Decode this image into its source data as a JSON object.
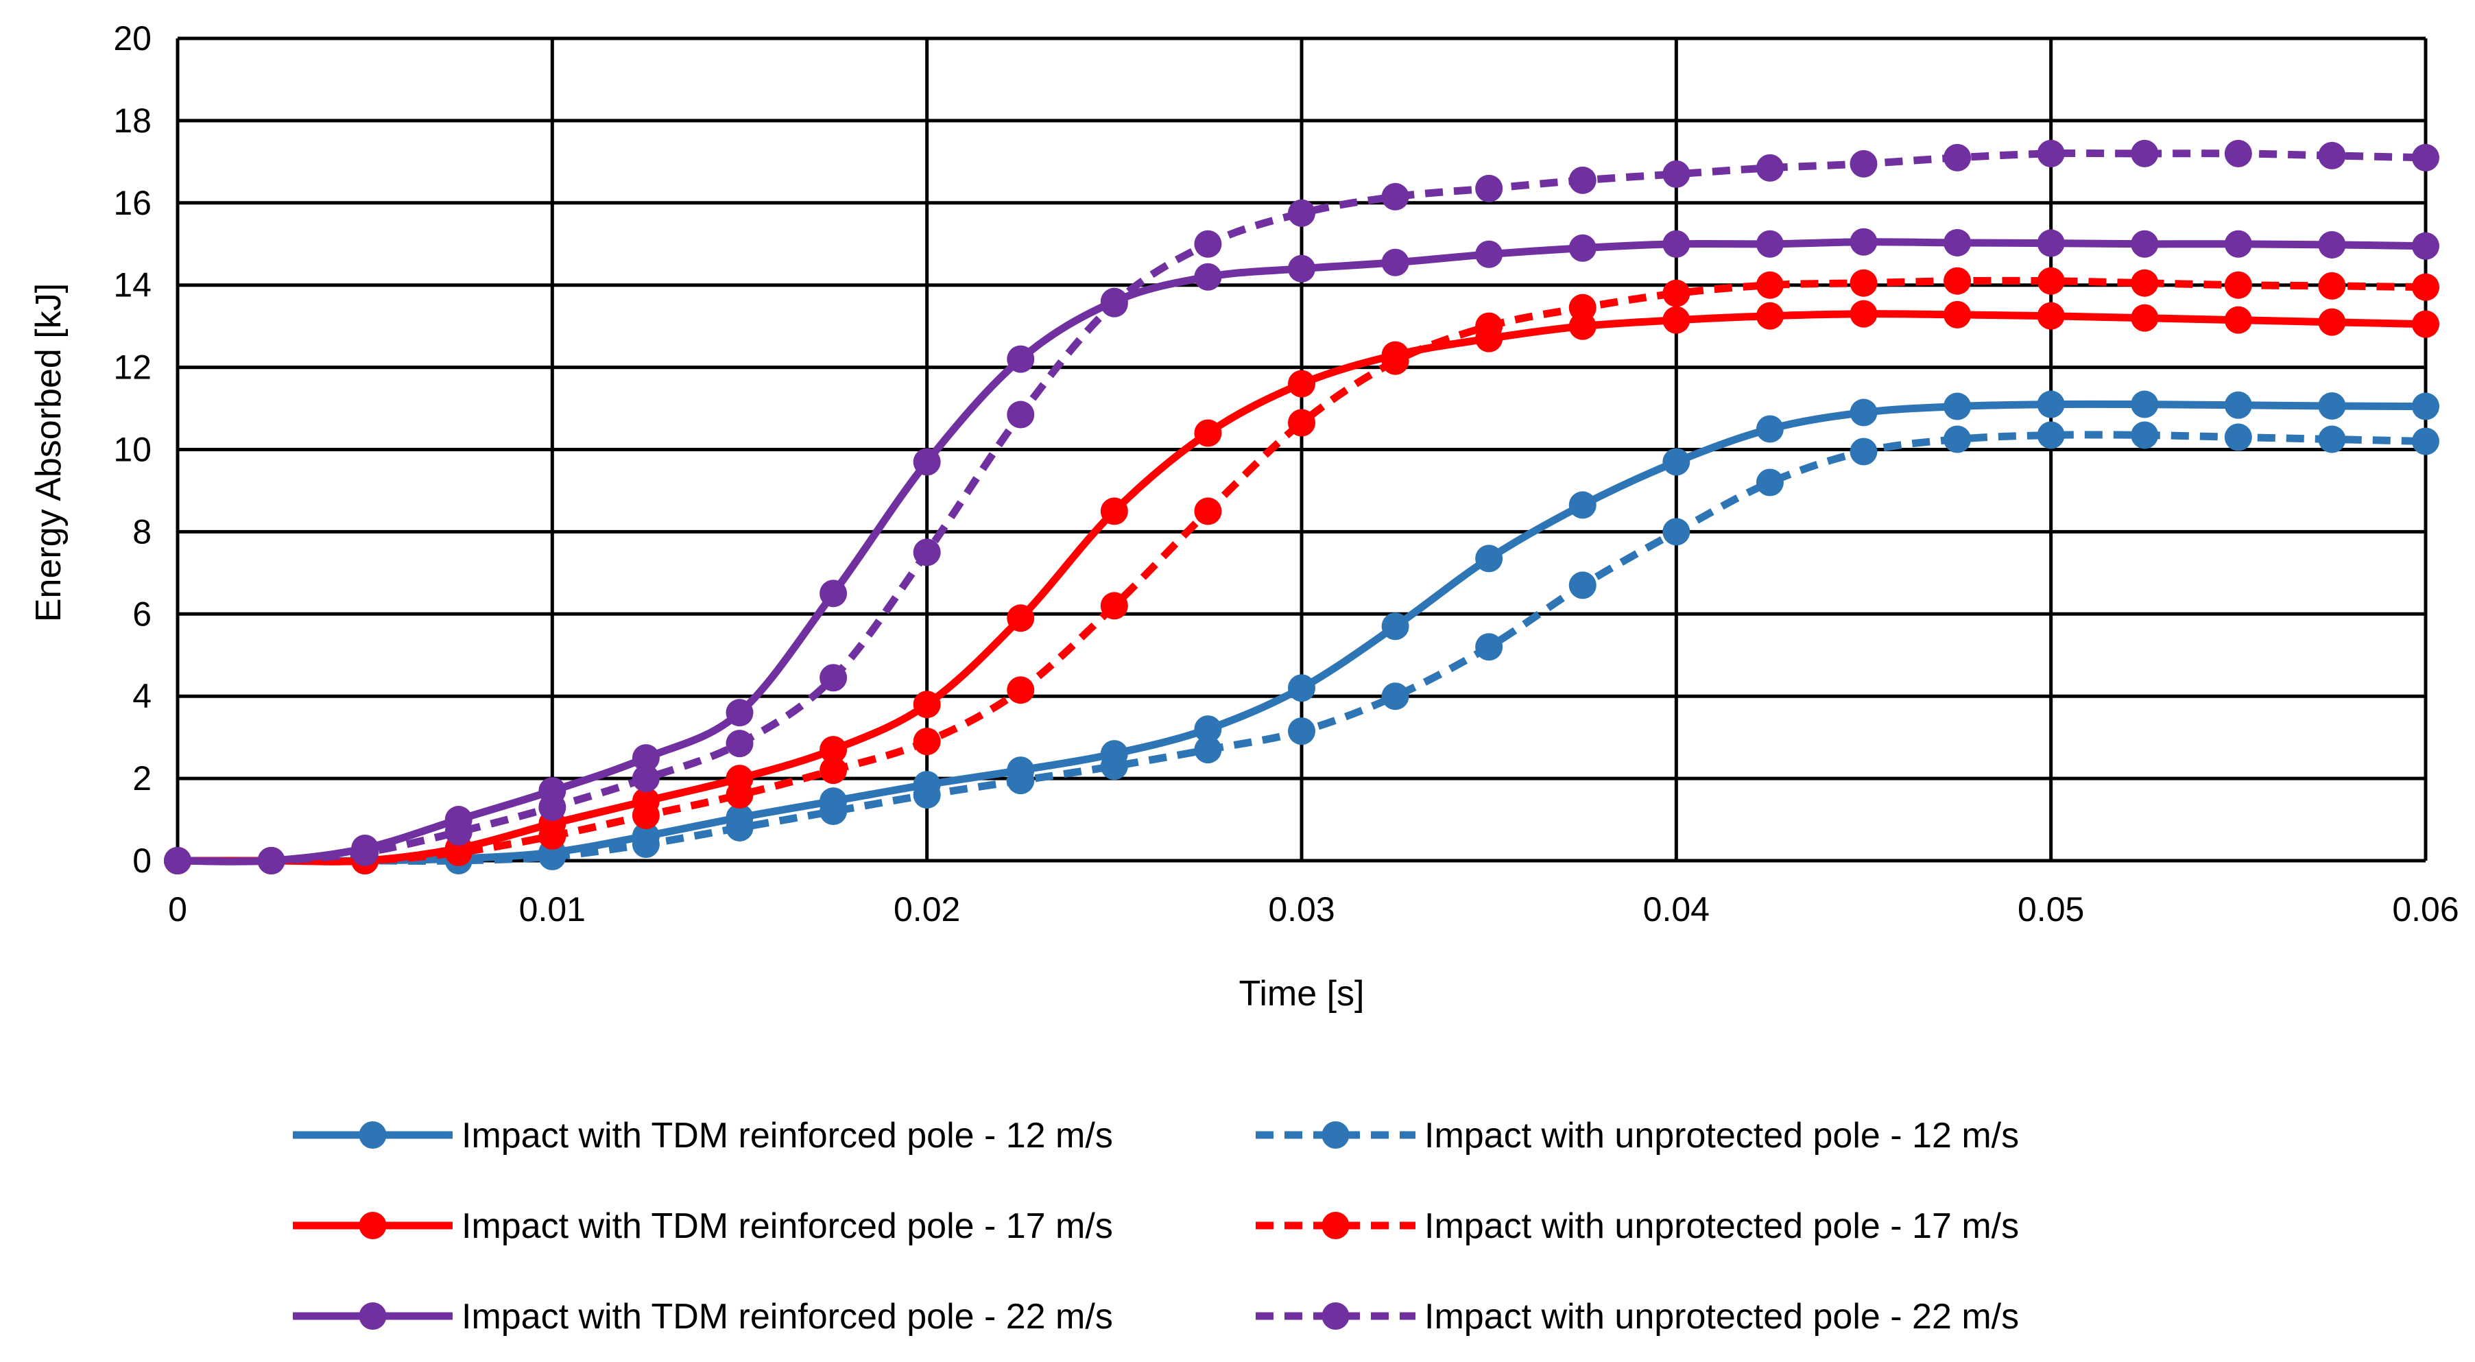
{
  "chart_data": {
    "type": "line",
    "title": "",
    "xlabel": "Time [s]",
    "ylabel": "Energy Absorbed [kJ]",
    "xlim": [
      0,
      0.06
    ],
    "ylim": [
      0,
      20
    ],
    "xticks": [
      "0",
      "0.01",
      "0.02",
      "0.03",
      "0.04",
      "0.05",
      "0.06"
    ],
    "yticks": [
      "0",
      "2",
      "4",
      "6",
      "8",
      "10",
      "12",
      "14",
      "16",
      "18",
      "20"
    ],
    "grid": true,
    "legend_position": "bottom",
    "x": [
      0,
      0.0025,
      0.005,
      0.0075,
      0.01,
      0.0125,
      0.015,
      0.0175,
      0.02,
      0.0225,
      0.025,
      0.0275,
      0.03,
      0.0325,
      0.035,
      0.0375,
      0.04,
      0.0425,
      0.045,
      0.0475,
      0.05,
      0.0525,
      0.055,
      0.0575,
      0.06
    ],
    "series": [
      {
        "name": "Impact with TDM reinforced pole - 12 m/s",
        "color": "#2E75B6",
        "dashed": false,
        "values": [
          0,
          0,
          0,
          0.05,
          0.2,
          0.6,
          1.05,
          1.45,
          1.85,
          2.2,
          2.6,
          3.2,
          4.2,
          5.7,
          7.35,
          8.65,
          9.7,
          10.5,
          10.9,
          11.05,
          11.1,
          11.1,
          11.08,
          11.06,
          11.05
        ]
      },
      {
        "name": "Impact with unprotected pole - 12 m/s",
        "color": "#2E75B6",
        "dashed": true,
        "values": [
          0,
          0,
          0,
          0,
          0.1,
          0.4,
          0.8,
          1.2,
          1.6,
          1.95,
          2.3,
          2.7,
          3.15,
          4.0,
          5.2,
          6.7,
          8.0,
          9.2,
          9.95,
          10.25,
          10.35,
          10.35,
          10.3,
          10.25,
          10.2
        ]
      },
      {
        "name": "Impact with TDM reinforced pole - 17 m/s",
        "color": "#FF0000",
        "dashed": false,
        "values": [
          0,
          0,
          0,
          0.3,
          0.9,
          1.45,
          2.0,
          2.7,
          3.8,
          5.9,
          8.5,
          10.4,
          11.6,
          12.3,
          12.7,
          13.0,
          13.15,
          13.25,
          13.3,
          13.28,
          13.25,
          13.2,
          13.15,
          13.1,
          13.05
        ]
      },
      {
        "name": "Impact with unprotected pole - 17 m/s",
        "color": "#FF0000",
        "dashed": true,
        "values": [
          0,
          0,
          0,
          0.2,
          0.6,
          1.1,
          1.6,
          2.2,
          2.9,
          4.15,
          6.2,
          8.5,
          10.65,
          12.15,
          13.0,
          13.45,
          13.8,
          14.0,
          14.05,
          14.1,
          14.1,
          14.05,
          14.0,
          13.98,
          13.95
        ]
      },
      {
        "name": "Impact with TDM reinforced pole - 22 m/s",
        "color": "#7030A0",
        "dashed": false,
        "values": [
          0,
          0,
          0.3,
          1.0,
          1.7,
          2.5,
          3.6,
          6.5,
          9.7,
          12.2,
          13.6,
          14.2,
          14.4,
          14.55,
          14.75,
          14.9,
          15.0,
          15.0,
          15.05,
          15.03,
          15.02,
          15.0,
          15.0,
          14.98,
          14.95
        ]
      },
      {
        "name": "Impact with unprotected pole - 22 m/s",
        "color": "#7030A0",
        "dashed": true,
        "values": [
          0,
          0,
          0.2,
          0.7,
          1.3,
          2.0,
          2.85,
          4.45,
          7.5,
          10.85,
          13.55,
          15.0,
          15.75,
          16.15,
          16.35,
          16.55,
          16.7,
          16.85,
          16.95,
          17.1,
          17.2,
          17.2,
          17.2,
          17.15,
          17.1
        ]
      }
    ],
    "legend": [
      "Impact with TDM reinforced pole - 12 m/s",
      "Impact with unprotected pole - 12 m/s",
      "Impact with TDM reinforced pole - 17 m/s",
      "Impact with unprotected pole - 17 m/s",
      "Impact with TDM reinforced pole - 22 m/s",
      "Impact with unprotected pole - 22 m/s"
    ]
  }
}
